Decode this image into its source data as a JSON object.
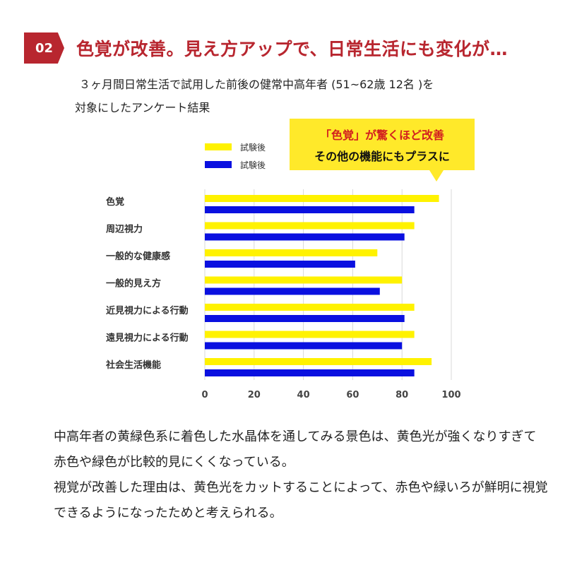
{
  "header": {
    "badge": "02",
    "headline": "色覚が改善。見え方アップで、日常生活にも変化が…",
    "subtitle_line1": "３ヶ月間日常生活で試用した前後の健常中高年者 (51~62歳 12名 )を",
    "subtitle_line2": "対象にしたアンケート結果"
  },
  "callout": {
    "line1": "「色覚」が驚くほど改善",
    "line2": "その他の機能にもプラスに"
  },
  "chart_data": {
    "type": "bar",
    "orientation": "horizontal",
    "categories": [
      "色覚",
      "周辺視力",
      "一般的な健康感",
      "一般的見え方",
      "近見視力による行動",
      "遠見視力による行動",
      "社会生活機能"
    ],
    "series": [
      {
        "name": "試験後",
        "color": "#fff200",
        "values": [
          95,
          85,
          70,
          80,
          85,
          85,
          92
        ]
      },
      {
        "name": "試験後",
        "color": "#0a10e0",
        "values": [
          85,
          81,
          61,
          71,
          81,
          80,
          85
        ]
      }
    ],
    "xlim": [
      0,
      100
    ],
    "xticks": [
      0,
      20,
      40,
      60,
      80,
      100
    ],
    "grid": true,
    "legend_position": "top-left"
  },
  "body": {
    "para1": "中高年者の黄緑色系に着色した水晶体を通してみる景色は、黄色光が強くなりすぎて赤色や緑色が比較的見にくくなっている。",
    "para2": "視覚が改善した理由は、黄色光をカットすることによって、赤色や緑いろが鮮明に視覚できるようになったためと考えられる。"
  }
}
